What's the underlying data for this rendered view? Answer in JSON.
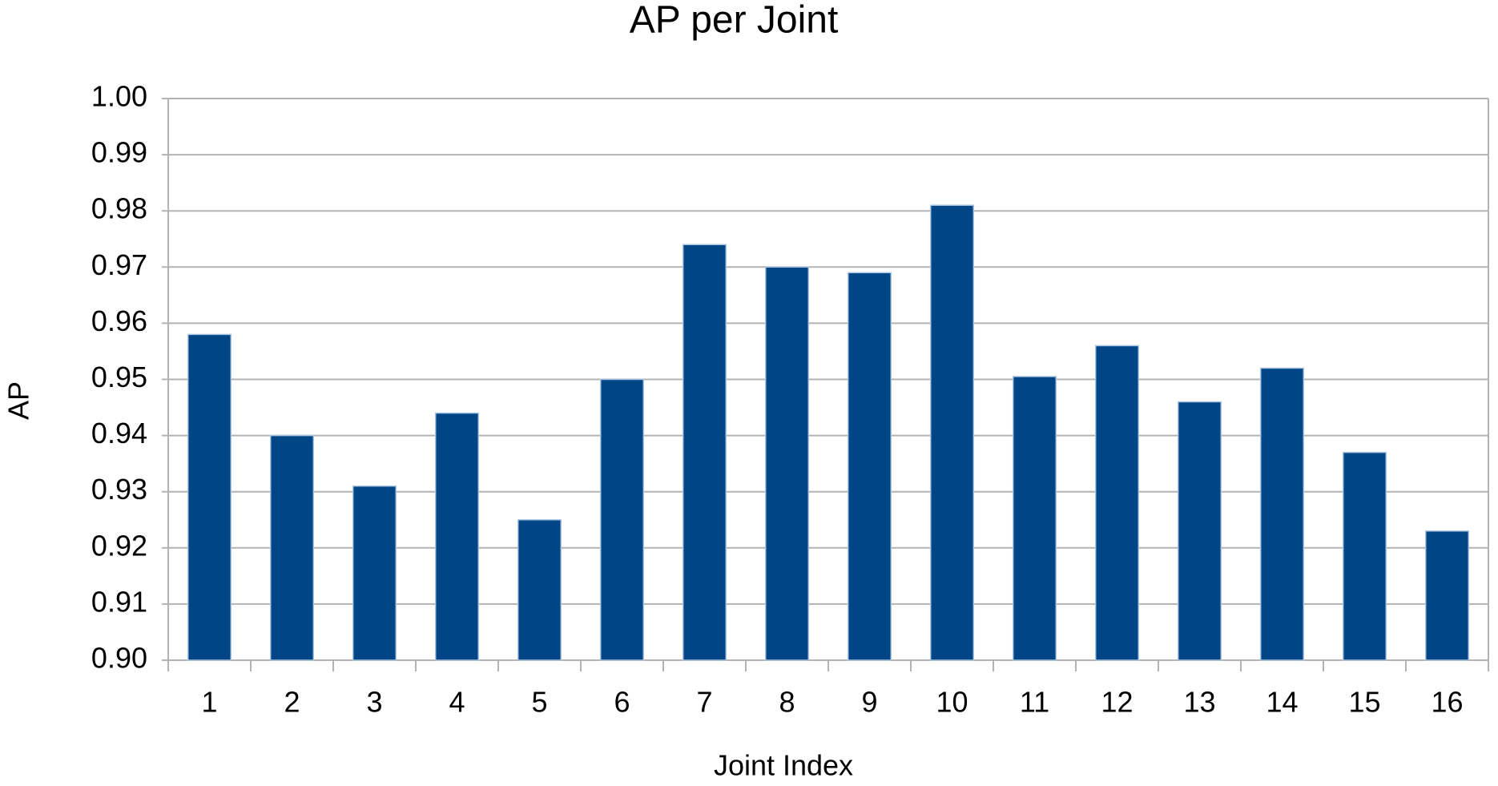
{
  "chart_data": {
    "type": "bar",
    "title": "AP per Joint",
    "x_label": "Joint Index",
    "y_label": "AP",
    "categories": [
      "1",
      "2",
      "3",
      "4",
      "5",
      "6",
      "7",
      "8",
      "9",
      "10",
      "11",
      "12",
      "13",
      "14",
      "15",
      "16"
    ],
    "values": [
      0.958,
      0.94,
      0.931,
      0.944,
      0.925,
      0.95,
      0.974,
      0.97,
      0.969,
      0.981,
      0.9505,
      0.956,
      0.946,
      0.952,
      0.937,
      0.923
    ],
    "color": "#004586",
    "ylim": [
      0.9,
      1.0
    ],
    "yticks": [
      {
        "value": 0.9,
        "label": "0.90"
      },
      0.91,
      0.92,
      0.93,
      0.94,
      0.95,
      0.96,
      0.97,
      0.98,
      0.99,
      {
        "value": 1.0,
        "label": "1.00"
      }
    ],
    "grid": true
  }
}
